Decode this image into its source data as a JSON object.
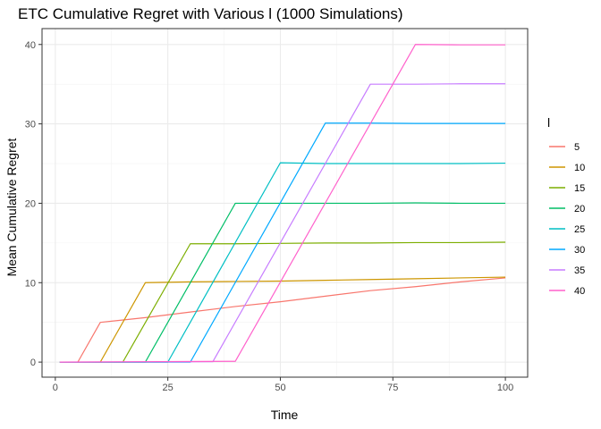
{
  "chart_data": {
    "type": "line",
    "title": "ETC Cumulative Regret with Various l (1000 Simulations)",
    "xlabel": "Time",
    "ylabel": "Mean Cumulative Regret",
    "xlim": [
      -2.95,
      104.95
    ],
    "ylim": [
      -1.9,
      42.0
    ],
    "x_ticks": [
      0,
      25,
      50,
      75,
      100
    ],
    "y_ticks": [
      0,
      10,
      20,
      30,
      40
    ],
    "grid": true,
    "legend": {
      "title": "l",
      "position": "right"
    },
    "series": [
      {
        "name": "5",
        "color": "#F8766D",
        "points": [
          [
            1,
            0
          ],
          [
            5,
            0
          ],
          [
            10,
            5
          ],
          [
            20,
            5.6
          ],
          [
            30,
            6.3
          ],
          [
            40,
            7
          ],
          [
            50,
            7.6
          ],
          [
            60,
            8.3
          ],
          [
            70,
            9
          ],
          [
            80,
            9.5
          ],
          [
            90,
            10.1
          ],
          [
            100,
            10.6
          ]
        ]
      },
      {
        "name": "10",
        "color": "#CD9600",
        "points": [
          [
            1,
            0
          ],
          [
            10,
            0
          ],
          [
            20,
            10
          ],
          [
            30,
            10.1
          ],
          [
            40,
            10.15
          ],
          [
            50,
            10.2
          ],
          [
            60,
            10.3
          ],
          [
            70,
            10.4
          ],
          [
            80,
            10.5
          ],
          [
            90,
            10.6
          ],
          [
            100,
            10.7
          ]
        ]
      },
      {
        "name": "15",
        "color": "#7CAE00",
        "points": [
          [
            1,
            0
          ],
          [
            15,
            0
          ],
          [
            30,
            14.9
          ],
          [
            40,
            14.9
          ],
          [
            50,
            14.95
          ],
          [
            60,
            15
          ],
          [
            70,
            15
          ],
          [
            80,
            15.05
          ],
          [
            90,
            15.05
          ],
          [
            100,
            15.1
          ]
        ]
      },
      {
        "name": "20",
        "color": "#00BE67",
        "points": [
          [
            1,
            0
          ],
          [
            20,
            0
          ],
          [
            40,
            20
          ],
          [
            50,
            20
          ],
          [
            60,
            20
          ],
          [
            70,
            20
          ],
          [
            80,
            20.05
          ],
          [
            90,
            20
          ],
          [
            100,
            20
          ]
        ]
      },
      {
        "name": "25",
        "color": "#00BFC4",
        "points": [
          [
            1,
            0
          ],
          [
            25,
            0
          ],
          [
            50,
            25.1
          ],
          [
            60,
            25
          ],
          [
            70,
            25
          ],
          [
            80,
            25
          ],
          [
            90,
            25
          ],
          [
            100,
            25.05
          ]
        ]
      },
      {
        "name": "30",
        "color": "#00A9FF",
        "points": [
          [
            1,
            0
          ],
          [
            30,
            0
          ],
          [
            60,
            30.1
          ],
          [
            70,
            30.1
          ],
          [
            80,
            30.05
          ],
          [
            90,
            30.05
          ],
          [
            100,
            30.05
          ]
        ]
      },
      {
        "name": "35",
        "color": "#C77CFF",
        "points": [
          [
            1,
            0
          ],
          [
            35,
            0.05
          ],
          [
            70,
            35
          ],
          [
            80,
            35
          ],
          [
            90,
            35.05
          ],
          [
            100,
            35.05
          ]
        ]
      },
      {
        "name": "40",
        "color": "#FF61CC",
        "points": [
          [
            1,
            0
          ],
          [
            40,
            0.1
          ],
          [
            80,
            40
          ],
          [
            90,
            39.95
          ],
          [
            100,
            39.95
          ]
        ]
      }
    ]
  }
}
